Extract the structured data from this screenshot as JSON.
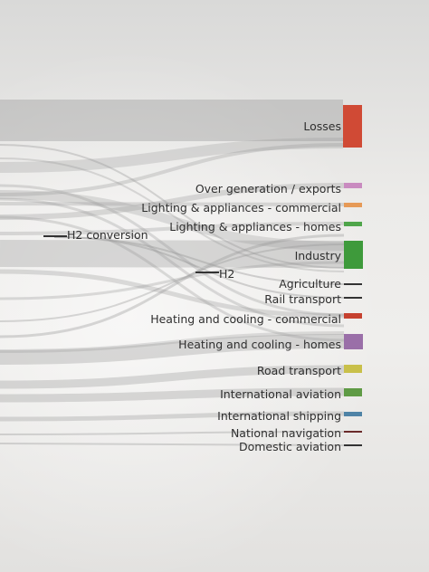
{
  "diagram": {
    "type": "sankey",
    "sink_nodes": [
      {
        "label": "Losses",
        "color": "#d04a35"
      },
      {
        "label": "Over generation / exports",
        "color": "#c98bc0"
      },
      {
        "label": "Lighting & appliances - commercial",
        "color": "#e69a57"
      },
      {
        "label": "Lighting & appliances - homes",
        "color": "#4fa54a"
      },
      {
        "label": "Industry",
        "color": "#3e9a3b"
      },
      {
        "label": "Agriculture",
        "color": "#333333"
      },
      {
        "label": "Rail transport",
        "color": "#333333"
      },
      {
        "label": "Heating and cooling - commercial",
        "color": "#c6412f"
      },
      {
        "label": "Heating and cooling - homes",
        "color": "#9a6fa8"
      },
      {
        "label": "Road transport",
        "color": "#c9c04a"
      },
      {
        "label": "International aviation",
        "color": "#5f9b45"
      },
      {
        "label": "International shipping",
        "color": "#4f83a6"
      },
      {
        "label": "National navigation",
        "color": "#6a2a2a"
      },
      {
        "label": "Domestic aviation",
        "color": "#333333"
      }
    ],
    "inner_nodes": [
      {
        "label": "H2 conversion"
      },
      {
        "label": "H2"
      }
    ]
  }
}
